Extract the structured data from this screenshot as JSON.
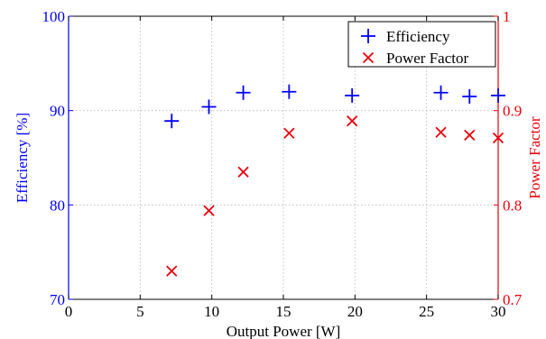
{
  "chart_data": {
    "type": "scatter",
    "xlabel": "Output Power [W]",
    "xlim": [
      0,
      30
    ],
    "xticks": [
      0,
      5,
      10,
      15,
      20,
      25,
      30
    ],
    "grid": true,
    "legend_position": "top-right",
    "y_left": {
      "label": "Efficiency [%]",
      "lim": [
        70,
        100
      ],
      "ticks": [
        70,
        80,
        90,
        100
      ],
      "color": "#0000ff"
    },
    "y_right": {
      "label": "Power Factor",
      "lim": [
        0.7,
        1
      ],
      "ticks": [
        "0.7",
        "0.8",
        "0.9",
        "1"
      ],
      "color": "#e8000b"
    },
    "series": [
      {
        "name": "Efficiency",
        "axis": "left",
        "marker": "plus",
        "color": "#0000ff",
        "x": [
          7.2,
          9.8,
          12.2,
          15.4,
          19.8,
          26.0,
          28.0,
          30.0
        ],
        "y": [
          88.9,
          90.4,
          91.9,
          92.0,
          91.6,
          91.9,
          91.5,
          91.6
        ]
      },
      {
        "name": "Power Factor",
        "axis": "right",
        "marker": "x",
        "color": "#e8000b",
        "x": [
          7.2,
          9.8,
          12.2,
          15.4,
          19.8,
          26.0,
          28.0,
          30.0
        ],
        "y": [
          0.73,
          0.794,
          0.835,
          0.876,
          0.889,
          0.877,
          0.874,
          0.871
        ]
      }
    ]
  }
}
